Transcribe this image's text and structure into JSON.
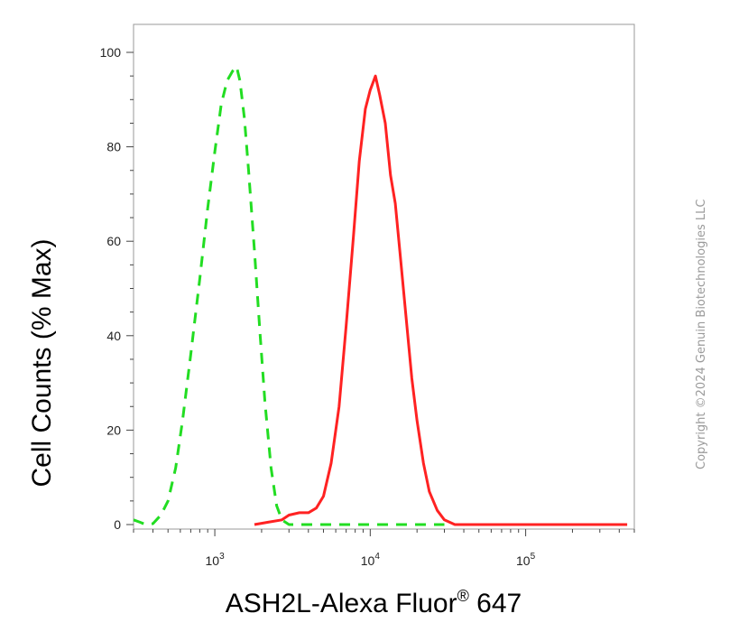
{
  "chart_data": {
    "type": "line",
    "title": "",
    "xlabel": "ASH2L-Alexa Fluor",
    "xlabel_mark": "®",
    "xlabel_suffix": " 647",
    "ylabel": "Cell Counts (% Max)",
    "x_scale": "log",
    "xlim": [
      300,
      500000
    ],
    "ylim": [
      0,
      105
    ],
    "y_ticks": [
      0,
      20,
      40,
      60,
      80,
      100
    ],
    "x_tick_labels": [
      {
        "value": 1000,
        "base": "10",
        "exp": "3"
      },
      {
        "value": 10000,
        "base": "10",
        "exp": "4"
      },
      {
        "value": 100000,
        "base": "10",
        "exp": "5"
      }
    ],
    "grid": false,
    "series": [
      {
        "color": "#22dd22",
        "style": "dashed",
        "points": [
          [
            300,
            1
          ],
          [
            330,
            0.5
          ],
          [
            360,
            0
          ],
          [
            400,
            0.2
          ],
          [
            450,
            2
          ],
          [
            500,
            5
          ],
          [
            560,
            12
          ],
          [
            620,
            22
          ],
          [
            700,
            36
          ],
          [
            800,
            52
          ],
          [
            900,
            67
          ],
          [
            1000,
            79
          ],
          [
            1100,
            89
          ],
          [
            1200,
            94
          ],
          [
            1300,
            96
          ],
          [
            1380,
            97
          ],
          [
            1450,
            94
          ],
          [
            1550,
            86
          ],
          [
            1650,
            75
          ],
          [
            1800,
            58
          ],
          [
            1950,
            41
          ],
          [
            2100,
            26
          ],
          [
            2300,
            12
          ],
          [
            2500,
            4
          ],
          [
            2700,
            1
          ],
          [
            3000,
            0
          ],
          [
            5000,
            0
          ],
          [
            10000,
            0
          ],
          [
            20000,
            0
          ],
          [
            30000,
            0
          ]
        ]
      },
      {
        "color": "#ff2222",
        "style": "solid",
        "points": [
          [
            1800,
            0
          ],
          [
            2200,
            0.5
          ],
          [
            2700,
            1
          ],
          [
            3000,
            2
          ],
          [
            3500,
            2.5
          ],
          [
            4000,
            2.5
          ],
          [
            4500,
            3.5
          ],
          [
            5000,
            6
          ],
          [
            5600,
            13
          ],
          [
            6300,
            25
          ],
          [
            7000,
            42
          ],
          [
            7800,
            61
          ],
          [
            8500,
            77
          ],
          [
            9300,
            88
          ],
          [
            10000,
            92
          ],
          [
            10800,
            95
          ],
          [
            11500,
            91
          ],
          [
            12500,
            85
          ],
          [
            13500,
            74
          ],
          [
            14500,
            68
          ],
          [
            15500,
            58
          ],
          [
            17000,
            44
          ],
          [
            18500,
            31
          ],
          [
            20000,
            22
          ],
          [
            22000,
            13
          ],
          [
            24000,
            7
          ],
          [
            27000,
            3
          ],
          [
            30000,
            1
          ],
          [
            35000,
            0
          ],
          [
            100000,
            0
          ],
          [
            450000,
            0
          ]
        ]
      }
    ]
  },
  "copyright": "Copyright ©2024 Genuin Biotechnologies LLC"
}
